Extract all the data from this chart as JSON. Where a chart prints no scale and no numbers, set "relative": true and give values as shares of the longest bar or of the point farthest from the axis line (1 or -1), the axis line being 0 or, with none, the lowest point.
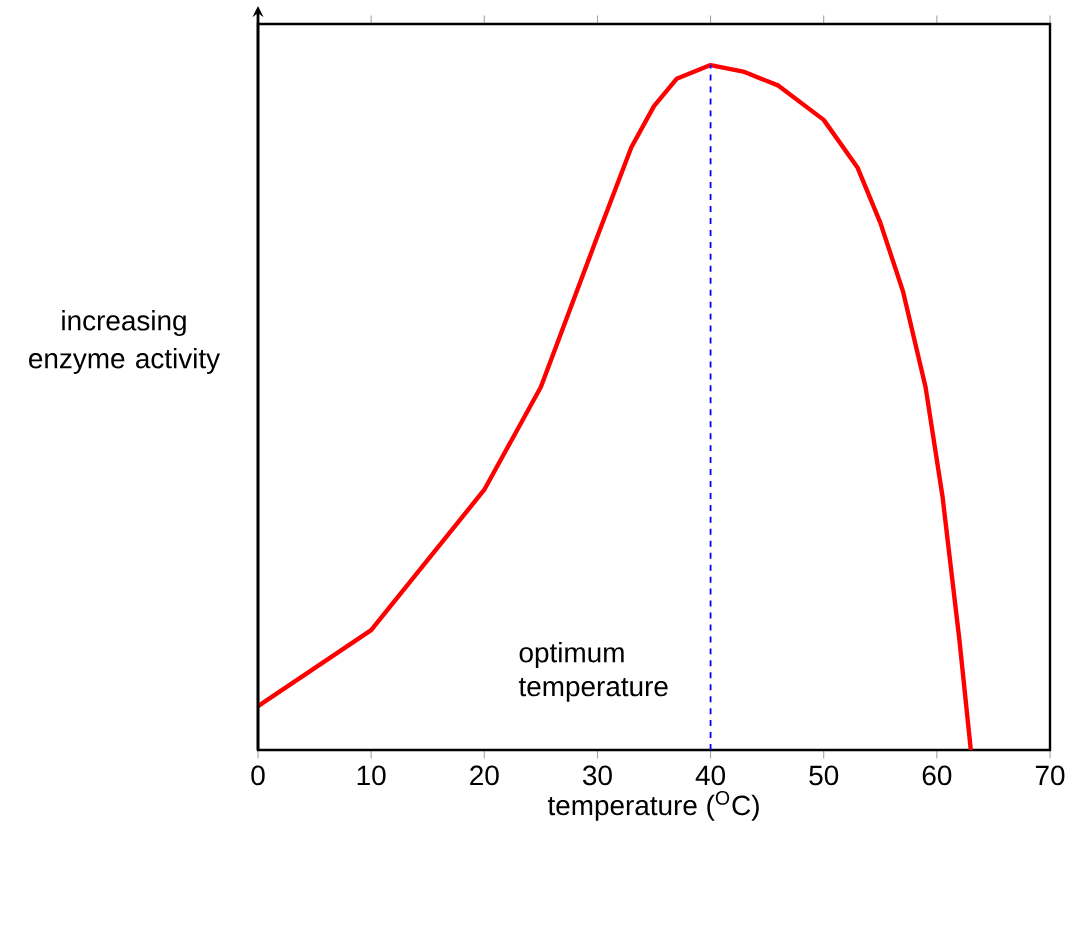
{
  "chart_data": {
    "type": "line",
    "relative": true,
    "xlabel": "temperature ($^{O}$C)",
    "ylabel": "increasing enzyme activity",
    "x": [
      0,
      10,
      20,
      25,
      30,
      33,
      35,
      37,
      40,
      43,
      46,
      50,
      53,
      55,
      57,
      59,
      60.5,
      62,
      63
    ],
    "series": [
      {
        "color": "#ff0000",
        "values": [
          0.064,
          0.175,
          0.38,
          0.53,
          0.75,
          0.88,
          0.94,
          0.98,
          1,
          0.99,
          0.97,
          0.92,
          0.85,
          0.77,
          0.67,
          0.53,
          0.37,
          0.16,
          0
        ]
      }
    ],
    "xlim": [
      0,
      70
    ],
    "xticks": [
      0,
      10,
      20,
      30,
      40,
      50,
      60,
      70
    ],
    "ref_lines": [
      {
        "axis": "x",
        "value": 40,
        "label": "optimum temperature",
        "color": "#0000ff",
        "line_style": "dashed"
      }
    ],
    "line_style": "solid",
    "marker": "none"
  }
}
